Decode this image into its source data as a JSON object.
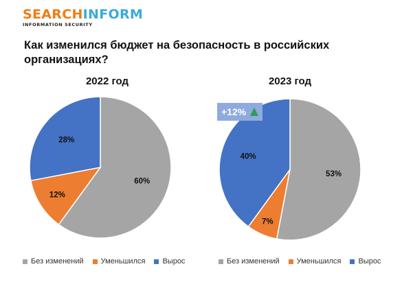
{
  "brand": {
    "logo_part1": "SEARCH",
    "logo_part2": "INFORM",
    "logo_sub": "INFORMATION SECURITY"
  },
  "page_title": "Как изменился бюджет на безопасность в российских организациях?",
  "colors": {
    "unchanged": "#a5a5a5",
    "decreased": "#ed7d31",
    "increased": "#4472c4",
    "brand_orange": "#f07c17",
    "brand_blue": "#3aa9dd",
    "callout_bg": "#8faadc",
    "arrow_up": "#2e9a57"
  },
  "chart_data": [
    {
      "type": "pie",
      "title": "2022 год",
      "categories": [
        "Без изменений",
        "Уменьшился",
        "Вырос"
      ],
      "values": [
        60,
        12,
        28
      ],
      "labels": [
        "60%",
        "12%",
        "28%"
      ],
      "legend": "bottom"
    },
    {
      "type": "pie",
      "title": "2023 год",
      "categories": [
        "Без изменений",
        "Уменьшился",
        "Вырос"
      ],
      "values": [
        53,
        7,
        40
      ],
      "labels": [
        "53%",
        "7%",
        "40%"
      ],
      "legend": "bottom",
      "annotation": {
        "text": "+12%",
        "icon": "triangle-up-icon"
      }
    }
  ]
}
